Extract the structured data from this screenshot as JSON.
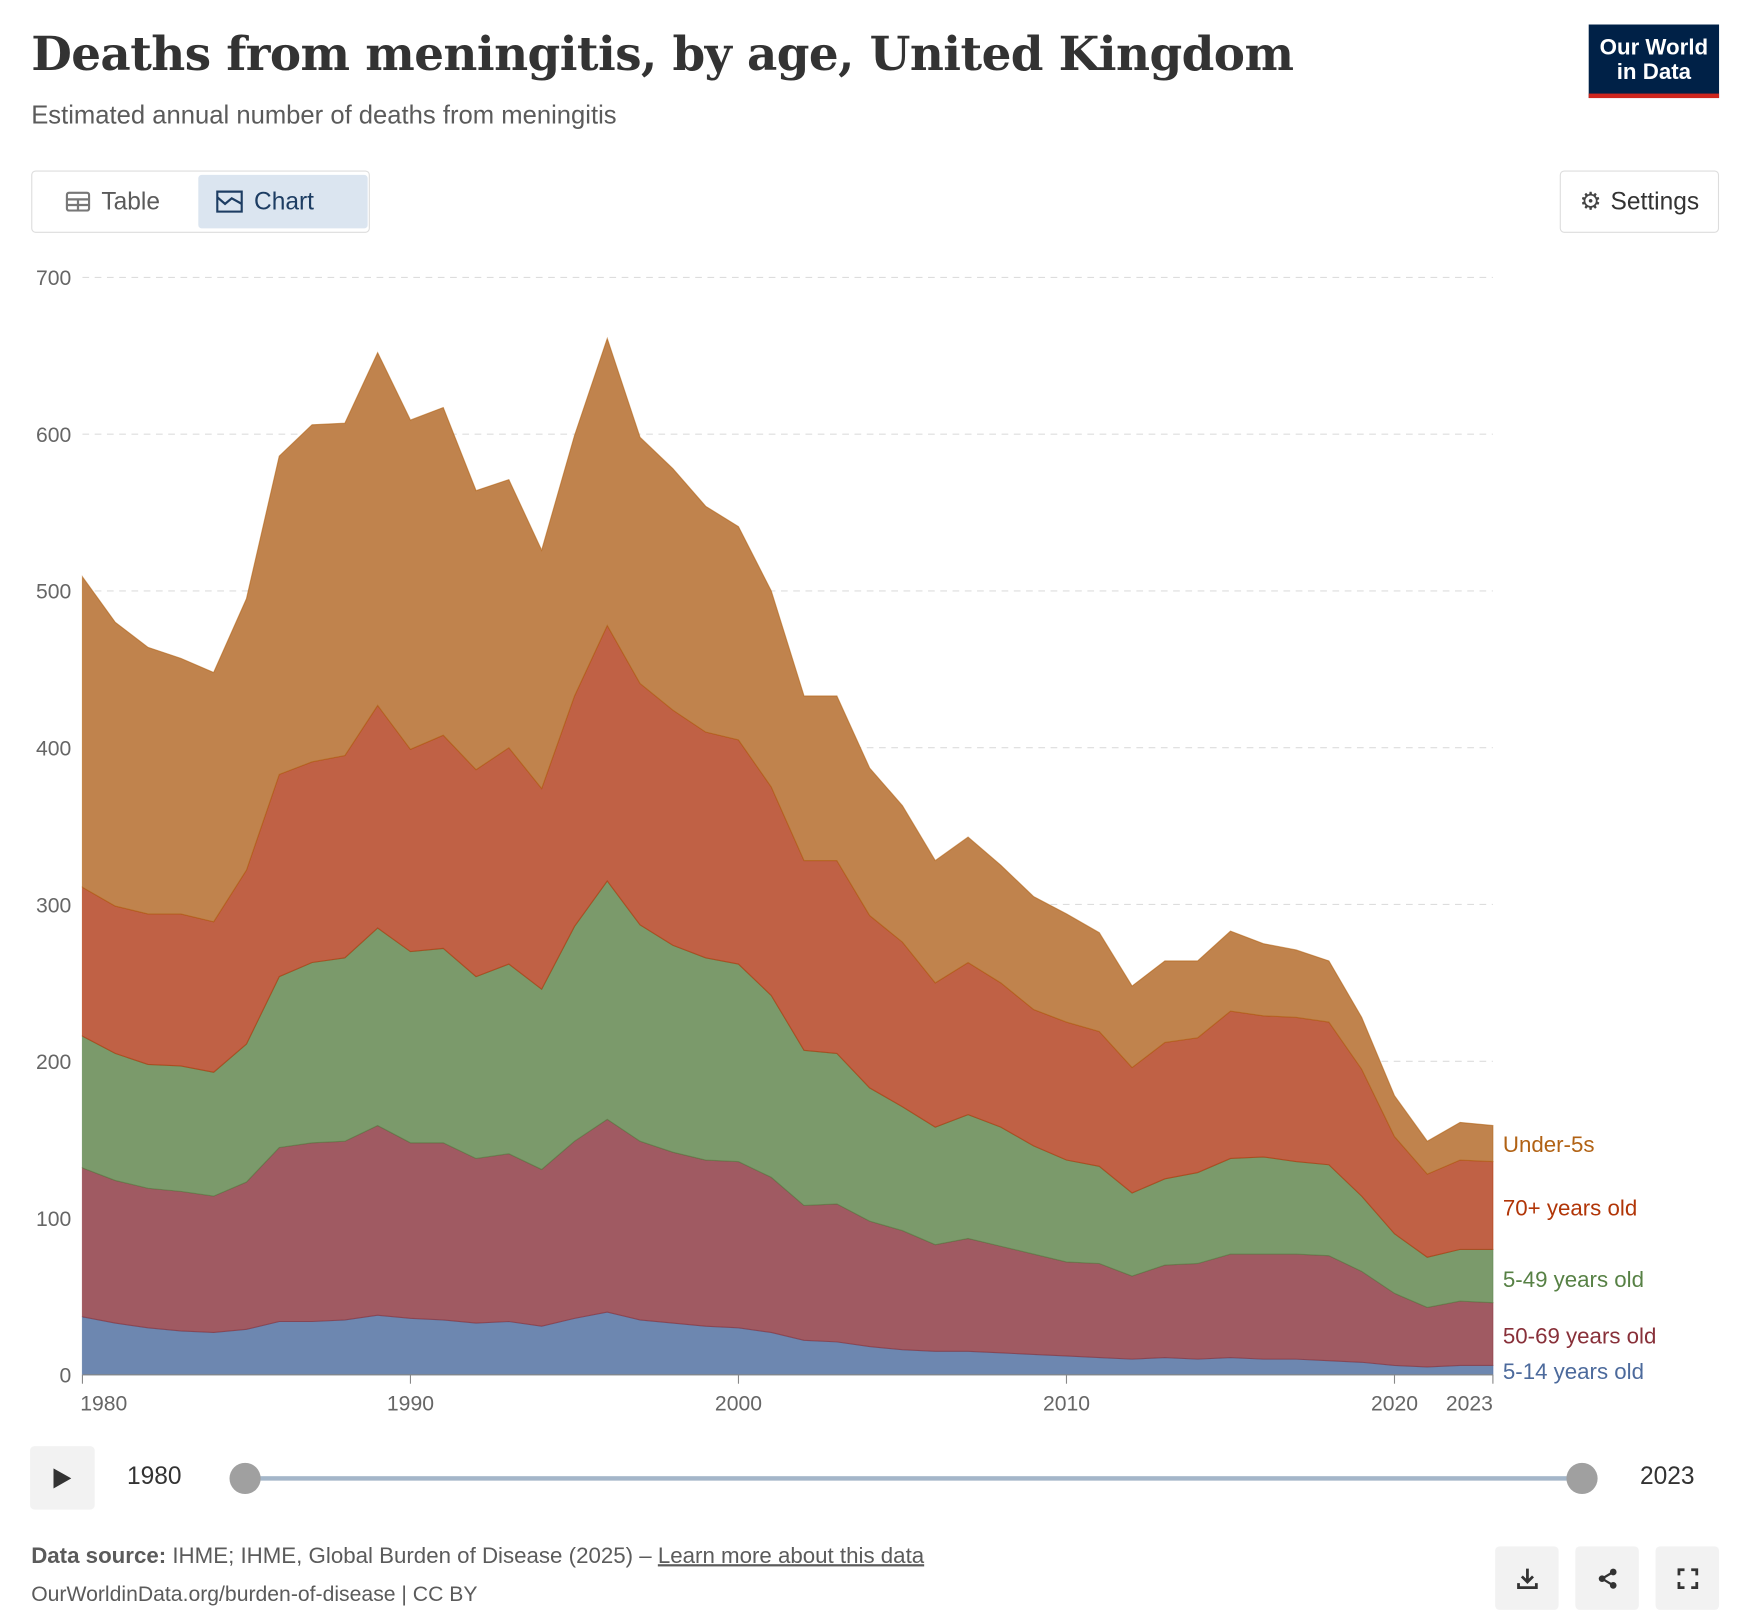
{
  "header": {
    "title": "Deaths from meningitis, by age, United Kingdom",
    "subtitle": "Estimated annual number of deaths from meningitis",
    "logo_line1": "Our World",
    "logo_line2": "in Data"
  },
  "tabs": {
    "table": "Table",
    "chart": "Chart"
  },
  "settings_label": "Settings",
  "timeline": {
    "start": "1980",
    "end": "2023"
  },
  "footer": {
    "source_label": "Data source:",
    "source_text": " IHME; IHME, Global Burden of Disease (2025) – ",
    "learn_more": "Learn more about this data",
    "url": "OurWorldinData.org/burden-of-disease | CC BY"
  },
  "chart_data": {
    "type": "area",
    "stacked": true,
    "title": "Deaths from meningitis, by age, United Kingdom",
    "ylim": [
      0,
      700
    ],
    "yticks": [
      0,
      100,
      200,
      300,
      400,
      500,
      600,
      700
    ],
    "xticks": [
      1980,
      1990,
      2000,
      2010,
      2020,
      2023
    ],
    "x": [
      1980,
      1981,
      1982,
      1983,
      1984,
      1985,
      1986,
      1987,
      1988,
      1989,
      1990,
      1991,
      1992,
      1993,
      1994,
      1995,
      1996,
      1997,
      1998,
      1999,
      2000,
      2001,
      2002,
      2003,
      2004,
      2005,
      2006,
      2007,
      2008,
      2009,
      2010,
      2011,
      2012,
      2013,
      2014,
      2015,
      2016,
      2017,
      2018,
      2019,
      2020,
      2021,
      2022,
      2023
    ],
    "series": [
      {
        "name": "5-14 years old",
        "color": "#6d87b0",
        "label_color": "#4c6a9c",
        "values": [
          37,
          33,
          30,
          28,
          27,
          29,
          34,
          34,
          35,
          38,
          36,
          35,
          33,
          34,
          31,
          36,
          40,
          35,
          33,
          31,
          30,
          27,
          22,
          21,
          18,
          16,
          15,
          15,
          14,
          13,
          12,
          11,
          10,
          11,
          10,
          11,
          10,
          10,
          9,
          8,
          6,
          5,
          6,
          6
        ]
      },
      {
        "name": "50-69 years old",
        "color": "#a05a62",
        "label_color": "#883039",
        "values": [
          95,
          91,
          89,
          89,
          87,
          94,
          111,
          114,
          114,
          121,
          112,
          113,
          105,
          107,
          100,
          113,
          123,
          114,
          109,
          106,
          106,
          99,
          86,
          88,
          80,
          76,
          68,
          72,
          68,
          64,
          60,
          60,
          53,
          59,
          61,
          66,
          67,
          67,
          67,
          58,
          46,
          38,
          41,
          40
        ]
      },
      {
        "name": "5-49 years old",
        "color": "#7b9a6b",
        "label_color": "#578145",
        "values": [
          84,
          81,
          79,
          80,
          79,
          88,
          109,
          115,
          117,
          126,
          122,
          124,
          116,
          121,
          115,
          137,
          152,
          138,
          132,
          129,
          126,
          116,
          99,
          96,
          85,
          79,
          75,
          79,
          76,
          69,
          65,
          62,
          53,
          55,
          58,
          61,
          62,
          59,
          58,
          48,
          38,
          32,
          33,
          34
        ]
      },
      {
        "name": "70+ years old",
        "color": "#c06145",
        "label_color": "#b13507",
        "values": [
          95,
          94,
          96,
          97,
          96,
          111,
          129,
          128,
          129,
          142,
          129,
          136,
          132,
          138,
          128,
          147,
          163,
          154,
          150,
          144,
          143,
          133,
          121,
          123,
          110,
          105,
          92,
          97,
          92,
          87,
          88,
          86,
          80,
          87,
          86,
          94,
          90,
          92,
          91,
          81,
          62,
          53,
          57,
          56
        ]
      },
      {
        "name": "Under-5s",
        "color": "#c0834d",
        "label_color": "#b16214",
        "values": [
          198,
          181,
          170,
          163,
          159,
          173,
          203,
          215,
          212,
          225,
          210,
          209,
          178,
          171,
          152,
          166,
          183,
          157,
          154,
          144,
          136,
          125,
          105,
          105,
          94,
          87,
          78,
          80,
          75,
          72,
          69,
          63,
          52,
          52,
          49,
          51,
          46,
          43,
          39,
          33,
          26,
          21,
          24,
          23
        ]
      }
    ]
  }
}
